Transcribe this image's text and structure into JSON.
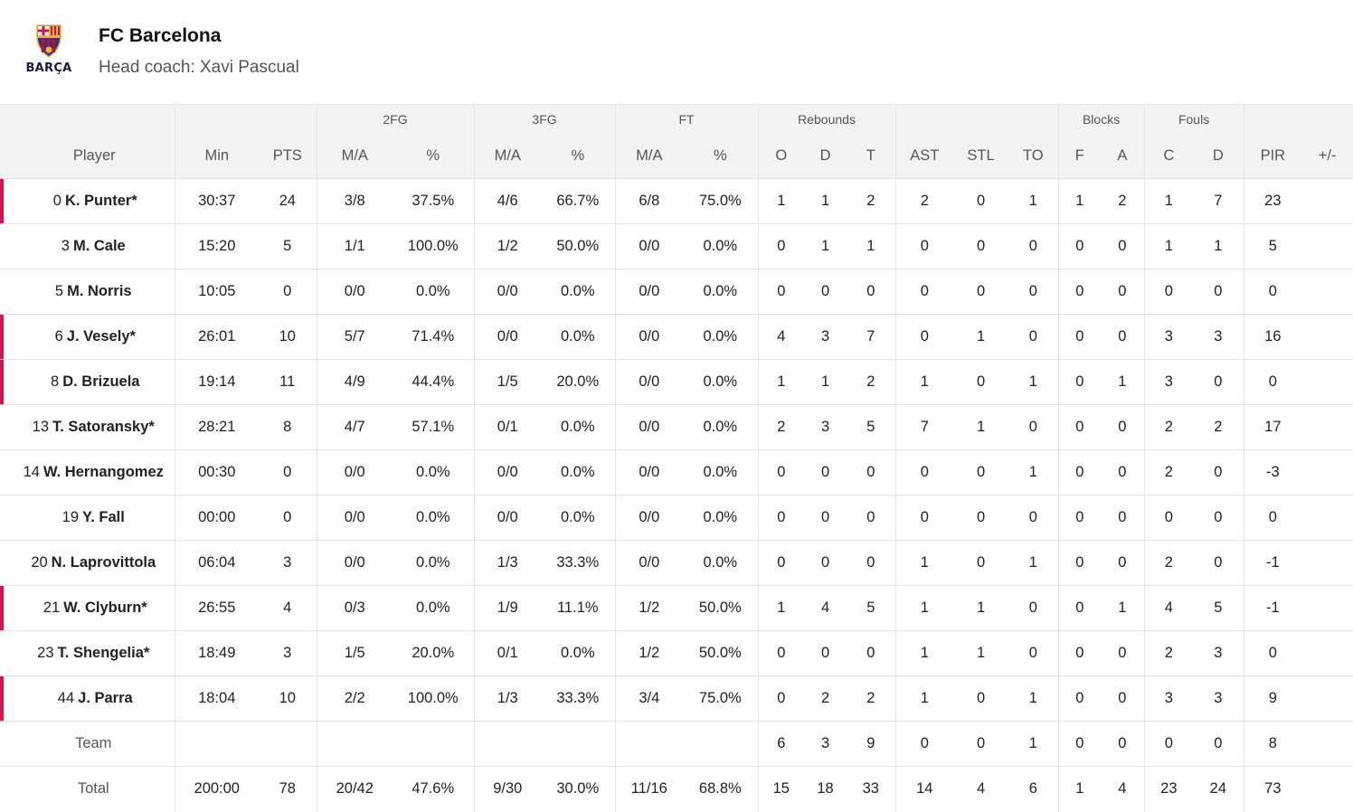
{
  "team": {
    "name": "FC Barcelona",
    "coach": "Head coach: Xavi Pascual",
    "crest_word": "BARÇA",
    "colors": {
      "blaugrana_blue": "#1d3d8f",
      "blaugrana_red": "#a6163b",
      "gold": "#e8b83a",
      "starter_accent": "#d4144a"
    }
  },
  "table": {
    "groups": {
      "fg2": "2FG",
      "fg3": "3FG",
      "ft": "FT",
      "reb": "Rebounds",
      "blk": "Blocks",
      "fouls": "Fouls"
    },
    "headers": [
      "Player",
      "Min",
      "PTS",
      "M/A",
      "%",
      "M/A",
      "%",
      "M/A",
      "%",
      "O",
      "D",
      "T",
      "AST",
      "STL",
      "TO",
      "F",
      "A",
      "C",
      "D",
      "PIR",
      "+/-"
    ],
    "players": [
      {
        "num": "0",
        "name": "K. Punter*",
        "starter": true,
        "min": "30:37",
        "pts": "24",
        "fg2": "3/8",
        "fg2p": "37.5%",
        "fg3": "4/6",
        "fg3p": "66.7%",
        "ft": "6/8",
        "ftp": "75.0%",
        "o": "1",
        "d": "1",
        "t": "2",
        "ast": "2",
        "stl": "0",
        "to": "1",
        "bf": "1",
        "ba": "2",
        "fc": "1",
        "fd": "7",
        "pir": "23",
        "pm": ""
      },
      {
        "num": "3",
        "name": "M. Cale",
        "starter": false,
        "min": "15:20",
        "pts": "5",
        "fg2": "1/1",
        "fg2p": "100.0%",
        "fg3": "1/2",
        "fg3p": "50.0%",
        "ft": "0/0",
        "ftp": "0.0%",
        "o": "0",
        "d": "1",
        "t": "1",
        "ast": "0",
        "stl": "0",
        "to": "0",
        "bf": "0",
        "ba": "0",
        "fc": "1",
        "fd": "1",
        "pir": "5",
        "pm": ""
      },
      {
        "num": "5",
        "name": "M. Norris",
        "starter": false,
        "min": "10:05",
        "pts": "0",
        "fg2": "0/0",
        "fg2p": "0.0%",
        "fg3": "0/0",
        "fg3p": "0.0%",
        "ft": "0/0",
        "ftp": "0.0%",
        "o": "0",
        "d": "0",
        "t": "0",
        "ast": "0",
        "stl": "0",
        "to": "0",
        "bf": "0",
        "ba": "0",
        "fc": "0",
        "fd": "0",
        "pir": "0",
        "pm": ""
      },
      {
        "num": "6",
        "name": "J. Vesely*",
        "starter": true,
        "min": "26:01",
        "pts": "10",
        "fg2": "5/7",
        "fg2p": "71.4%",
        "fg3": "0/0",
        "fg3p": "0.0%",
        "ft": "0/0",
        "ftp": "0.0%",
        "o": "4",
        "d": "3",
        "t": "7",
        "ast": "0",
        "stl": "1",
        "to": "0",
        "bf": "0",
        "ba": "0",
        "fc": "3",
        "fd": "3",
        "pir": "16",
        "pm": ""
      },
      {
        "num": "8",
        "name": "D. Brizuela",
        "starter": true,
        "min": "19:14",
        "pts": "11",
        "fg2": "4/9",
        "fg2p": "44.4%",
        "fg3": "1/5",
        "fg3p": "20.0%",
        "ft": "0/0",
        "ftp": "0.0%",
        "o": "1",
        "d": "1",
        "t": "2",
        "ast": "1",
        "stl": "0",
        "to": "1",
        "bf": "0",
        "ba": "1",
        "fc": "3",
        "fd": "0",
        "pir": "0",
        "pm": ""
      },
      {
        "num": "13",
        "name": "T. Satoransky*",
        "starter": false,
        "min": "28:21",
        "pts": "8",
        "fg2": "4/7",
        "fg2p": "57.1%",
        "fg3": "0/1",
        "fg3p": "0.0%",
        "ft": "0/0",
        "ftp": "0.0%",
        "o": "2",
        "d": "3",
        "t": "5",
        "ast": "7",
        "stl": "1",
        "to": "0",
        "bf": "0",
        "ba": "0",
        "fc": "2",
        "fd": "2",
        "pir": "17",
        "pm": ""
      },
      {
        "num": "14",
        "name": "W. Hernangomez",
        "starter": false,
        "min": "00:30",
        "pts": "0",
        "fg2": "0/0",
        "fg2p": "0.0%",
        "fg3": "0/0",
        "fg3p": "0.0%",
        "ft": "0/0",
        "ftp": "0.0%",
        "o": "0",
        "d": "0",
        "t": "0",
        "ast": "0",
        "stl": "0",
        "to": "1",
        "bf": "0",
        "ba": "0",
        "fc": "2",
        "fd": "0",
        "pir": "-3",
        "pm": ""
      },
      {
        "num": "19",
        "name": "Y. Fall",
        "starter": false,
        "min": "00:00",
        "pts": "0",
        "fg2": "0/0",
        "fg2p": "0.0%",
        "fg3": "0/0",
        "fg3p": "0.0%",
        "ft": "0/0",
        "ftp": "0.0%",
        "o": "0",
        "d": "0",
        "t": "0",
        "ast": "0",
        "stl": "0",
        "to": "0",
        "bf": "0",
        "ba": "0",
        "fc": "0",
        "fd": "0",
        "pir": "0",
        "pm": ""
      },
      {
        "num": "20",
        "name": "N. Laprovittola",
        "starter": false,
        "min": "06:04",
        "pts": "3",
        "fg2": "0/0",
        "fg2p": "0.0%",
        "fg3": "1/3",
        "fg3p": "33.3%",
        "ft": "0/0",
        "ftp": "0.0%",
        "o": "0",
        "d": "0",
        "t": "0",
        "ast": "1",
        "stl": "0",
        "to": "1",
        "bf": "0",
        "ba": "0",
        "fc": "2",
        "fd": "0",
        "pir": "-1",
        "pm": ""
      },
      {
        "num": "21",
        "name": "W. Clyburn*",
        "starter": true,
        "min": "26:55",
        "pts": "4",
        "fg2": "0/3",
        "fg2p": "0.0%",
        "fg3": "1/9",
        "fg3p": "11.1%",
        "ft": "1/2",
        "ftp": "50.0%",
        "o": "1",
        "d": "4",
        "t": "5",
        "ast": "1",
        "stl": "1",
        "to": "0",
        "bf": "0",
        "ba": "1",
        "fc": "4",
        "fd": "5",
        "pir": "-1",
        "pm": ""
      },
      {
        "num": "23",
        "name": "T. Shengelia*",
        "starter": false,
        "min": "18:49",
        "pts": "3",
        "fg2": "1/5",
        "fg2p": "20.0%",
        "fg3": "0/1",
        "fg3p": "0.0%",
        "ft": "1/2",
        "ftp": "50.0%",
        "o": "0",
        "d": "0",
        "t": "0",
        "ast": "1",
        "stl": "1",
        "to": "0",
        "bf": "0",
        "ba": "0",
        "fc": "2",
        "fd": "3",
        "pir": "0",
        "pm": ""
      },
      {
        "num": "44",
        "name": "J. Parra",
        "starter": true,
        "min": "18:04",
        "pts": "10",
        "fg2": "2/2",
        "fg2p": "100.0%",
        "fg3": "1/3",
        "fg3p": "33.3%",
        "ft": "3/4",
        "ftp": "75.0%",
        "o": "0",
        "d": "2",
        "t": "2",
        "ast": "1",
        "stl": "0",
        "to": "1",
        "bf": "0",
        "ba": "0",
        "fc": "3",
        "fd": "3",
        "pir": "9",
        "pm": ""
      }
    ],
    "team_row": {
      "label": "Team",
      "o": "6",
      "d": "3",
      "t": "9",
      "ast": "0",
      "stl": "0",
      "to": "1",
      "bf": "0",
      "ba": "0",
      "fc": "0",
      "fd": "0",
      "pir": "8"
    },
    "total_row": {
      "label": "Total",
      "min": "200:00",
      "pts": "78",
      "fg2": "20/42",
      "fg2p": "47.6%",
      "fg3": "9/30",
      "fg3p": "30.0%",
      "ft": "11/16",
      "ftp": "68.8%",
      "o": "15",
      "d": "18",
      "t": "33",
      "ast": "14",
      "stl": "4",
      "to": "6",
      "bf": "1",
      "ba": "4",
      "fc": "23",
      "fd": "24",
      "pir": "73"
    }
  }
}
